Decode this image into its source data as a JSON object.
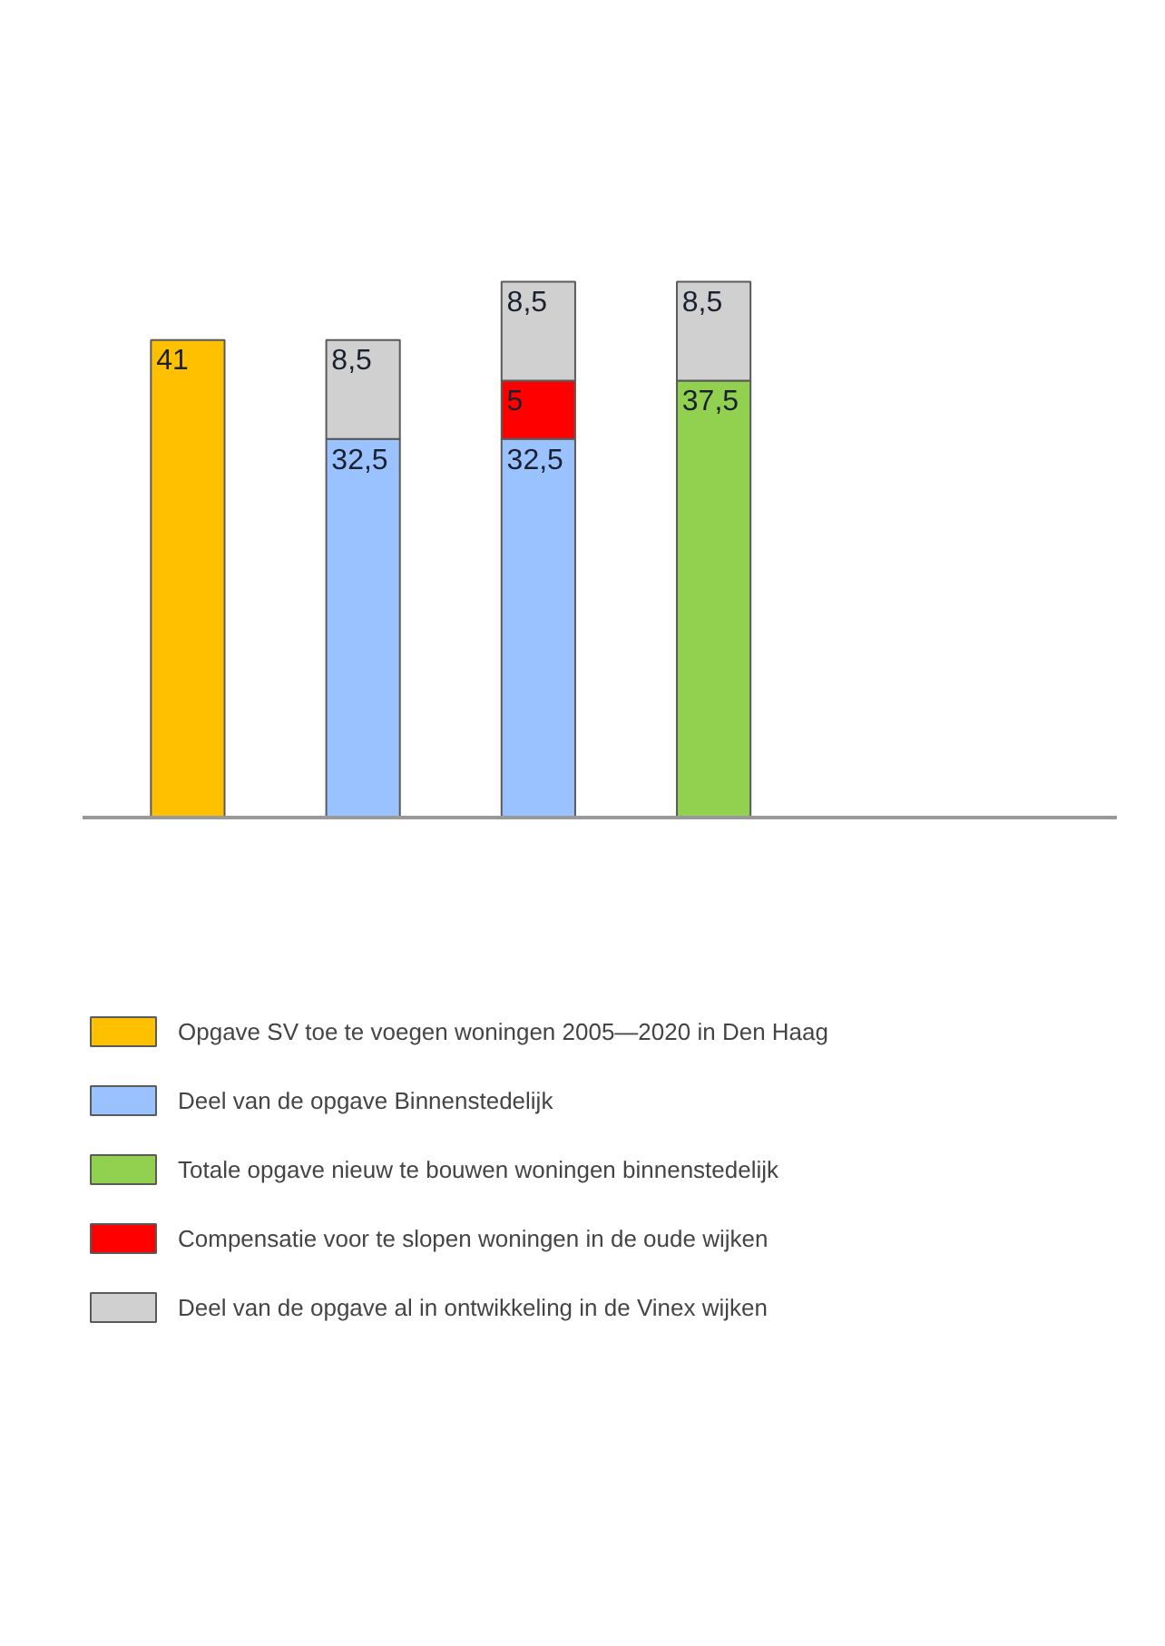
{
  "chart_data": {
    "type": "bar",
    "stacked": true,
    "categories": [
      null,
      null,
      null,
      null
    ],
    "legend": "bottom",
    "grid": false,
    "series": [
      {
        "name": "Opgave SV toe te voegen woningen 2005—2020 in Den Haag",
        "color": "#ffc000",
        "values": [
          41,
          null,
          null,
          null
        ],
        "value_labels": [
          "41",
          null,
          null,
          null
        ]
      },
      {
        "name": "Deel van de opgave Binnenstedelijk",
        "color": "#99c2ff",
        "values": [
          null,
          32.5,
          32.5,
          null
        ],
        "value_labels": [
          null,
          "32,5",
          "32,5",
          null
        ]
      },
      {
        "name": "Totale opgave nieuw te bouwen woningen binnenstedelijk",
        "color": "#92d050",
        "values": [
          null,
          null,
          null,
          37.5
        ],
        "value_labels": [
          null,
          null,
          null,
          "37,5"
        ]
      },
      {
        "name": "Compensatie voor te slopen woningen in de oude wijken",
        "color": "#ff0000",
        "values": [
          null,
          null,
          5,
          null
        ],
        "value_labels": [
          null,
          null,
          "5",
          null
        ]
      },
      {
        "name": "Deel van de opgave al in ontwikkeling in de Vinex wijken",
        "color": "#d0d0d0",
        "values": [
          null,
          8.5,
          8.5,
          8.5
        ],
        "value_labels": [
          null,
          "8,5",
          "8,5",
          "8,5"
        ]
      }
    ]
  }
}
